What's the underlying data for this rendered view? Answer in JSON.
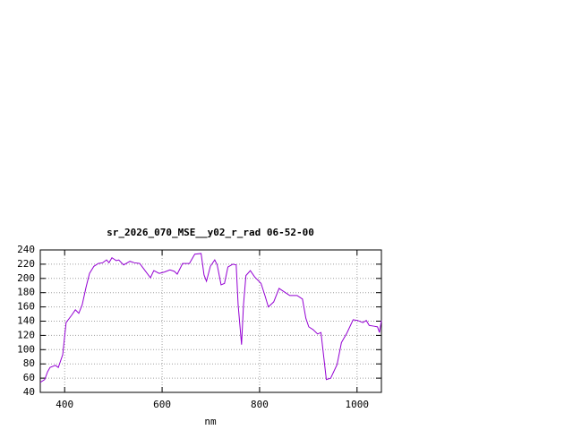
{
  "chart_data": {
    "type": "line",
    "title": "sr_2026_070_MSE__y02_r_rad 06-52-00",
    "x_label": "nm",
    "x": [
      350,
      359,
      365,
      370,
      381,
      387,
      396,
      403,
      414,
      422,
      429,
      436,
      444,
      451,
      460,
      469,
      478,
      486,
      491,
      497,
      506,
      511,
      521,
      534,
      543,
      554,
      565,
      576,
      583,
      594,
      605,
      616,
      625,
      631,
      642,
      656,
      667,
      680,
      686,
      691,
      699,
      708,
      713,
      721,
      728,
      735,
      745,
      752,
      756,
      763,
      767,
      772,
      781,
      790,
      803,
      811,
      818,
      829,
      840,
      851,
      862,
      877,
      888,
      895,
      901,
      910,
      919,
      926,
      932,
      937,
      946,
      959,
      968,
      979,
      992,
      1001,
      1012,
      1019,
      1025,
      1034,
      1042,
      1046,
      1050
    ],
    "values": [
      54,
      58,
      69,
      75,
      78,
      75,
      93,
      138,
      148,
      156,
      151,
      163,
      188,
      207,
      217,
      221,
      222,
      226,
      222,
      229,
      225,
      226,
      219,
      224,
      222,
      221,
      211,
      201,
      211,
      207,
      209,
      212,
      210,
      206,
      221,
      221,
      234,
      235,
      205,
      196,
      217,
      226,
      219,
      191,
      193,
      216,
      220,
      219,
      163,
      107,
      163,
      204,
      211,
      202,
      193,
      176,
      160,
      167,
      186,
      181,
      176,
      176,
      171,
      144,
      132,
      128,
      122,
      124,
      88,
      58,
      60,
      79,
      110,
      123,
      142,
      141,
      138,
      141,
      134,
      133,
      132,
      124,
      141
    ],
    "color": "#9400d3",
    "xlim": [
      350,
      1050
    ],
    "xticks": [
      400,
      600,
      800,
      1000
    ],
    "ylim": [
      40,
      240
    ],
    "yticks": [
      40,
      60,
      80,
      100,
      120,
      140,
      160,
      180,
      200,
      220,
      240
    ],
    "grid": true
  }
}
